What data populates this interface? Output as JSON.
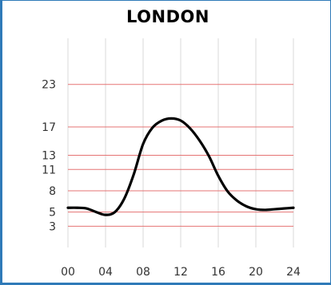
{
  "chart_data": {
    "type": "line",
    "title": "LONDON",
    "xlabel": "",
    "ylabel": "",
    "x_ticks": [
      "00",
      "04",
      "08",
      "12",
      "16",
      "20",
      "24"
    ],
    "x_tick_values": [
      0,
      4,
      8,
      12,
      16,
      20,
      24
    ],
    "y_ticks": [
      "3",
      "5",
      "8",
      "11",
      "13",
      "17",
      "23"
    ],
    "y_tick_values": [
      3,
      5,
      8,
      11,
      13,
      17,
      23
    ],
    "xlim": [
      0,
      24
    ],
    "ylim": [
      0,
      29.5
    ],
    "grid": {
      "vertical": true,
      "horizontal_lines_at_ticks": true
    },
    "colors": {
      "grid_vertical": "#d8d8d8",
      "grid_horizontal": "#e57373",
      "line": "#000000",
      "border": "#2f7ab8"
    },
    "series": [
      {
        "x": [
          0,
          1,
          2,
          3,
          4,
          5,
          6,
          7,
          8,
          9,
          10,
          11,
          12,
          13,
          14,
          15,
          16,
          17,
          18,
          19,
          20,
          21,
          22,
          23,
          24
        ],
        "values": [
          5.6,
          5.6,
          5.5,
          5.0,
          4.6,
          5.0,
          6.9,
          10.3,
          14.6,
          16.9,
          17.9,
          18.2,
          17.9,
          16.8,
          15.1,
          12.9,
          10.1,
          7.9,
          6.6,
          5.8,
          5.4,
          5.3,
          5.4,
          5.5,
          5.6
        ]
      }
    ]
  }
}
